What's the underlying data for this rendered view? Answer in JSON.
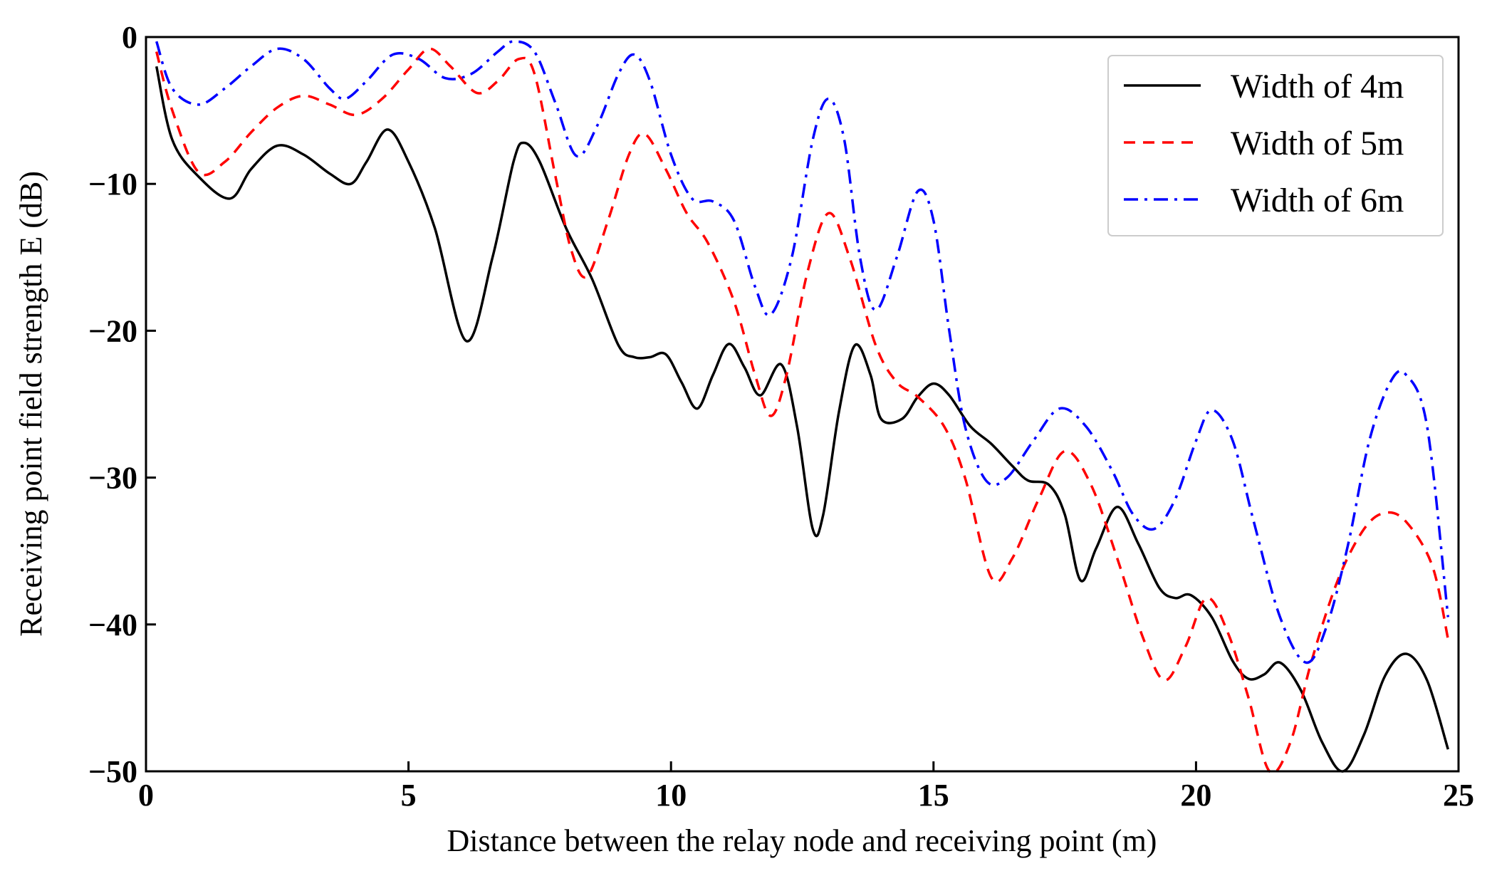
{
  "chart_data": {
    "type": "line",
    "title": "",
    "xlabel": "Distance between the relay node and receiving point (m)",
    "ylabel": "Receiving point field strength E (dB)",
    "xlim": [
      0,
      25
    ],
    "ylim": [
      -50,
      0
    ],
    "xticks": [
      0,
      5,
      10,
      15,
      20,
      25
    ],
    "yticks": [
      0,
      -10,
      -20,
      -30,
      -40,
      -50
    ],
    "xtick_labels": [
      "0",
      "5",
      "10",
      "15",
      "20",
      "25"
    ],
    "ytick_labels": [
      "0",
      "−10",
      "−20",
      "−30",
      "−40",
      "−50"
    ],
    "grid": false,
    "legend_position": "top-right",
    "series": [
      {
        "name": "Width of 4m",
        "color": "#000000",
        "style": "solid",
        "points": [
          [
            0.2,
            -2.0
          ],
          [
            0.5,
            -7.0
          ],
          [
            1.0,
            -9.5
          ],
          [
            1.6,
            -11.0
          ],
          [
            2.0,
            -9.0
          ],
          [
            2.5,
            -7.4
          ],
          [
            3.0,
            -8.0
          ],
          [
            3.5,
            -9.3
          ],
          [
            3.9,
            -10.0
          ],
          [
            4.2,
            -8.5
          ],
          [
            4.6,
            -6.3
          ],
          [
            5.0,
            -8.5
          ],
          [
            5.5,
            -13.0
          ],
          [
            6.1,
            -20.7
          ],
          [
            6.6,
            -15.0
          ],
          [
            7.0,
            -8.5
          ],
          [
            7.2,
            -7.2
          ],
          [
            7.5,
            -8.5
          ],
          [
            8.0,
            -13.0
          ],
          [
            8.5,
            -16.5
          ],
          [
            9.0,
            -21.0
          ],
          [
            9.3,
            -21.8
          ],
          [
            9.6,
            -21.8
          ],
          [
            9.9,
            -21.6
          ],
          [
            10.2,
            -23.5
          ],
          [
            10.5,
            -25.3
          ],
          [
            10.8,
            -23.0
          ],
          [
            11.1,
            -20.9
          ],
          [
            11.4,
            -22.5
          ],
          [
            11.7,
            -24.4
          ],
          [
            12.1,
            -22.3
          ],
          [
            12.4,
            -26.5
          ],
          [
            12.7,
            -33.5
          ],
          [
            12.9,
            -32.5
          ],
          [
            13.2,
            -25.5
          ],
          [
            13.5,
            -21.0
          ],
          [
            13.8,
            -23.0
          ],
          [
            14.0,
            -26.0
          ],
          [
            14.4,
            -26.0
          ],
          [
            14.7,
            -24.5
          ],
          [
            15.0,
            -23.6
          ],
          [
            15.3,
            -24.4
          ],
          [
            15.7,
            -26.5
          ],
          [
            16.1,
            -27.7
          ],
          [
            16.5,
            -29.2
          ],
          [
            16.8,
            -30.2
          ],
          [
            17.2,
            -30.5
          ],
          [
            17.5,
            -32.5
          ],
          [
            17.8,
            -37.0
          ],
          [
            18.1,
            -34.8
          ],
          [
            18.5,
            -32.0
          ],
          [
            18.9,
            -34.5
          ],
          [
            19.3,
            -37.5
          ],
          [
            19.6,
            -38.2
          ],
          [
            19.9,
            -38.0
          ],
          [
            20.3,
            -39.5
          ],
          [
            20.7,
            -42.5
          ],
          [
            21.0,
            -43.7
          ],
          [
            21.3,
            -43.4
          ],
          [
            21.6,
            -42.6
          ],
          [
            22.0,
            -44.5
          ],
          [
            22.4,
            -48.0
          ],
          [
            22.8,
            -50.0
          ],
          [
            23.2,
            -47.5
          ],
          [
            23.6,
            -43.5
          ],
          [
            24.0,
            -42.0
          ],
          [
            24.4,
            -43.8
          ],
          [
            24.8,
            -48.5
          ]
        ]
      },
      {
        "name": "Width of 5m",
        "color": "#ff0000",
        "style": "dashed",
        "points": [
          [
            0.2,
            -1.0
          ],
          [
            0.5,
            -5.0
          ],
          [
            1.0,
            -9.2
          ],
          [
            1.5,
            -8.5
          ],
          [
            2.0,
            -6.5
          ],
          [
            2.5,
            -4.8
          ],
          [
            3.0,
            -4.0
          ],
          [
            3.5,
            -4.6
          ],
          [
            4.0,
            -5.3
          ],
          [
            4.5,
            -4.2
          ],
          [
            5.0,
            -2.2
          ],
          [
            5.4,
            -0.8
          ],
          [
            5.8,
            -2.0
          ],
          [
            6.3,
            -3.8
          ],
          [
            6.7,
            -3.0
          ],
          [
            7.1,
            -1.5
          ],
          [
            7.4,
            -2.5
          ],
          [
            7.8,
            -9.5
          ],
          [
            8.1,
            -14.5
          ],
          [
            8.4,
            -16.3
          ],
          [
            8.8,
            -12.5
          ],
          [
            9.2,
            -8.0
          ],
          [
            9.5,
            -6.6
          ],
          [
            9.9,
            -9.0
          ],
          [
            10.3,
            -12.0
          ],
          [
            10.7,
            -14.0
          ],
          [
            11.2,
            -18.0
          ],
          [
            11.6,
            -23.0
          ],
          [
            11.9,
            -25.8
          ],
          [
            12.2,
            -23.0
          ],
          [
            12.6,
            -16.0
          ],
          [
            13.0,
            -12.0
          ],
          [
            13.4,
            -15.0
          ],
          [
            13.9,
            -21.0
          ],
          [
            14.3,
            -23.5
          ],
          [
            14.7,
            -24.5
          ],
          [
            15.2,
            -26.5
          ],
          [
            15.6,
            -30.0
          ],
          [
            16.1,
            -36.8
          ],
          [
            16.5,
            -35.5
          ],
          [
            17.0,
            -31.5
          ],
          [
            17.5,
            -28.2
          ],
          [
            18.0,
            -30.5
          ],
          [
            18.5,
            -35.5
          ],
          [
            19.0,
            -41.0
          ],
          [
            19.4,
            -43.8
          ],
          [
            19.8,
            -41.5
          ],
          [
            20.2,
            -38.2
          ],
          [
            20.6,
            -40.5
          ],
          [
            21.0,
            -45.0
          ],
          [
            21.4,
            -50.0
          ],
          [
            21.8,
            -48.0
          ],
          [
            22.2,
            -42.5
          ],
          [
            22.7,
            -37.0
          ],
          [
            23.2,
            -33.5
          ],
          [
            23.6,
            -32.4
          ],
          [
            24.0,
            -33.0
          ],
          [
            24.5,
            -36.0
          ],
          [
            24.8,
            -41.0
          ]
        ]
      },
      {
        "name": "Width of 6m",
        "color": "#0000ff",
        "style": "dashdot",
        "points": [
          [
            0.2,
            -0.3
          ],
          [
            0.5,
            -3.5
          ],
          [
            1.0,
            -4.6
          ],
          [
            1.5,
            -3.5
          ],
          [
            2.0,
            -2.0
          ],
          [
            2.5,
            -0.8
          ],
          [
            3.0,
            -1.5
          ],
          [
            3.5,
            -3.5
          ],
          [
            3.8,
            -4.2
          ],
          [
            4.2,
            -3.0
          ],
          [
            4.7,
            -1.2
          ],
          [
            5.2,
            -1.5
          ],
          [
            5.7,
            -2.8
          ],
          [
            6.2,
            -2.5
          ],
          [
            6.7,
            -1.0
          ],
          [
            7.0,
            -0.3
          ],
          [
            7.4,
            -1.0
          ],
          [
            7.8,
            -4.5
          ],
          [
            8.2,
            -8.1
          ],
          [
            8.6,
            -6.0
          ],
          [
            9.0,
            -2.5
          ],
          [
            9.3,
            -1.2
          ],
          [
            9.6,
            -3.0
          ],
          [
            10.0,
            -8.0
          ],
          [
            10.4,
            -11.0
          ],
          [
            10.8,
            -11.2
          ],
          [
            11.2,
            -12.5
          ],
          [
            11.6,
            -17.0
          ],
          [
            11.9,
            -18.9
          ],
          [
            12.3,
            -15.0
          ],
          [
            12.7,
            -7.0
          ],
          [
            13.0,
            -4.2
          ],
          [
            13.3,
            -7.0
          ],
          [
            13.6,
            -15.0
          ],
          [
            13.9,
            -18.6
          ],
          [
            14.3,
            -15.0
          ],
          [
            14.7,
            -10.5
          ],
          [
            15.0,
            -12.5
          ],
          [
            15.3,
            -20.0
          ],
          [
            15.6,
            -26.5
          ],
          [
            16.0,
            -30.2
          ],
          [
            16.4,
            -30.0
          ],
          [
            16.9,
            -27.5
          ],
          [
            17.4,
            -25.3
          ],
          [
            17.9,
            -26.5
          ],
          [
            18.4,
            -29.5
          ],
          [
            18.8,
            -32.5
          ],
          [
            19.2,
            -33.5
          ],
          [
            19.6,
            -31.5
          ],
          [
            20.0,
            -27.5
          ],
          [
            20.3,
            -25.4
          ],
          [
            20.7,
            -27.5
          ],
          [
            21.1,
            -33.0
          ],
          [
            21.6,
            -39.5
          ],
          [
            22.1,
            -42.6
          ],
          [
            22.5,
            -40.0
          ],
          [
            22.9,
            -34.5
          ],
          [
            23.3,
            -27.5
          ],
          [
            23.7,
            -23.5
          ],
          [
            24.0,
            -23.0
          ],
          [
            24.4,
            -26.5
          ],
          [
            24.8,
            -39.5
          ]
        ]
      }
    ]
  }
}
